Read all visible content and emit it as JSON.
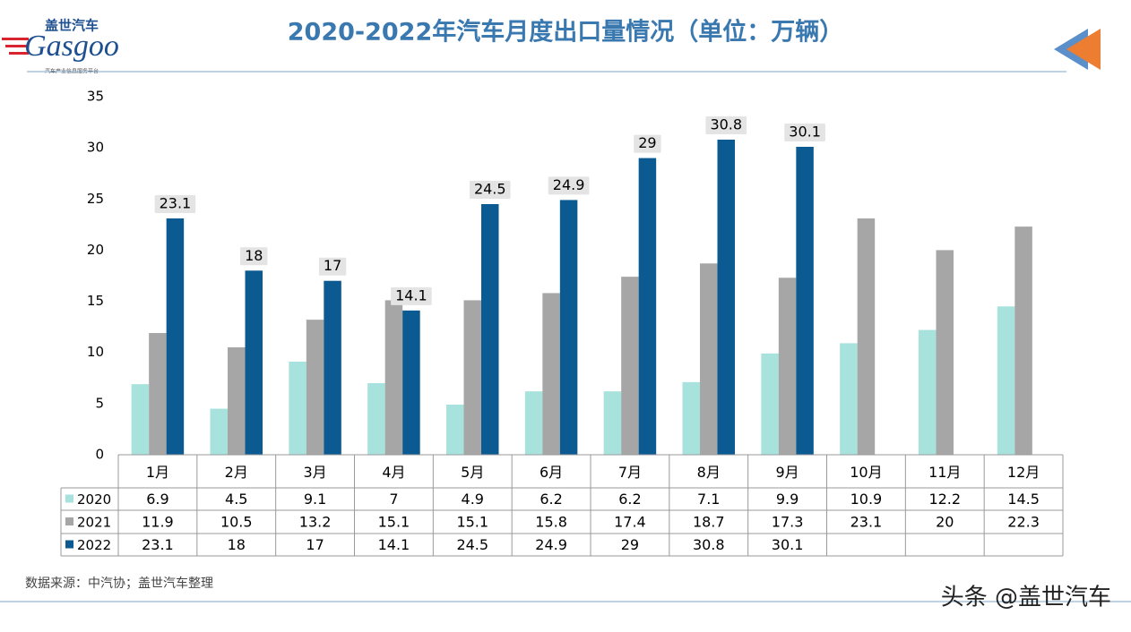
{
  "logo": {
    "brand_cn": "盖世汽车",
    "brand_en": "Gasgoo",
    "slogan": "汽车产业信息服务平台"
  },
  "chart_data": {
    "type": "bar",
    "title": "2020-2022年汽车月度出口量情况（单位：万辆）",
    "categories": [
      "1月",
      "2月",
      "3月",
      "4月",
      "5月",
      "6月",
      "7月",
      "8月",
      "9月",
      "10月",
      "11月",
      "12月"
    ],
    "series": [
      {
        "name": "2020",
        "color": "#a8e2dd",
        "values": [
          6.9,
          4.5,
          9.1,
          7,
          4.9,
          6.2,
          6.2,
          7.1,
          9.9,
          10.9,
          12.2,
          14.5
        ]
      },
      {
        "name": "2021",
        "color": "#a6a6a6",
        "values": [
          11.9,
          10.5,
          13.2,
          15.1,
          15.1,
          15.8,
          17.4,
          18.7,
          17.3,
          23.1,
          20,
          22.3
        ]
      },
      {
        "name": "2022",
        "color": "#0c5a92",
        "values": [
          23.1,
          18,
          17,
          14.1,
          24.5,
          24.9,
          29,
          30.8,
          30.1,
          null,
          null,
          null
        ],
        "data_labels": true
      }
    ],
    "ylim": [
      0,
      35
    ],
    "yticks": [
      0,
      5,
      10,
      15,
      20,
      25,
      30,
      35
    ],
    "grid": false,
    "data_table": true
  },
  "footer": {
    "source": "数据来源：中汽协；盖世汽车整理",
    "watermark": "头条 @盖世汽车"
  }
}
